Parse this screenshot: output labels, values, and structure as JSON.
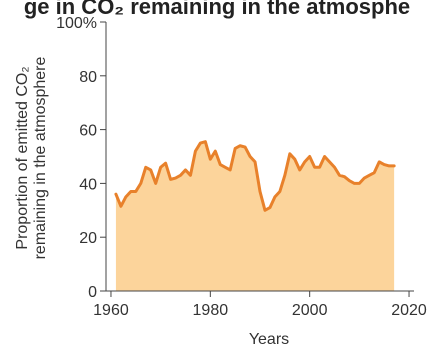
{
  "header": {
    "title_fragment": "ge in CO₂ remaining in the atmosphe"
  },
  "chart_data": {
    "type": "area",
    "xlabel": "Years",
    "ylabel_line1": "Proportion of emitted CO₂",
    "ylabel_line2": "remaining in the atmosphere",
    "xlim": [
      1959,
      2021
    ],
    "ylim": [
      0,
      100
    ],
    "x_ticks": [
      1960,
      1980,
      2000,
      2020
    ],
    "x_tick_labels": [
      "1960",
      "1980",
      "2000",
      "2020"
    ],
    "y_ticks": [
      0,
      20,
      40,
      60,
      80,
      100
    ],
    "y_tick_labels": [
      "0",
      "20",
      "40",
      "60",
      "80",
      "100%"
    ],
    "grid": false,
    "colors": {
      "line": "#e8812b",
      "fill": "#fcd49b",
      "axis": "#444444"
    },
    "series": [
      {
        "x": [
          1961,
          1962,
          1963,
          1964,
          1965,
          1966,
          1967,
          1968,
          1969,
          1970,
          1971,
          1972,
          1973,
          1974,
          1975,
          1976,
          1977,
          1978,
          1979,
          1980,
          1981,
          1982,
          1983,
          1984,
          1985,
          1986,
          1987,
          1988,
          1989,
          1990,
          1991,
          1992,
          1993,
          1994,
          1995,
          1996,
          1997,
          1998,
          1999,
          2000,
          2001,
          2002,
          2003,
          2004,
          2005,
          2006,
          2007,
          2008,
          2009,
          2010,
          2011,
          2012,
          2013,
          2014,
          2015,
          2016,
          2017
        ],
        "values": [
          36,
          31.5,
          35,
          37,
          37,
          40,
          46,
          45,
          40,
          46,
          47.5,
          41.5,
          42,
          43,
          45,
          43,
          52,
          55,
          55.5,
          49,
          52,
          47,
          46,
          45,
          53,
          54,
          53.5,
          50,
          48,
          37,
          30,
          31,
          35,
          37,
          43,
          51,
          49,
          45,
          48,
          50,
          46,
          46,
          50,
          48,
          46,
          43,
          42.5,
          41,
          40,
          40,
          42,
          43,
          44,
          48,
          47,
          46.5,
          46.5
        ]
      }
    ]
  }
}
